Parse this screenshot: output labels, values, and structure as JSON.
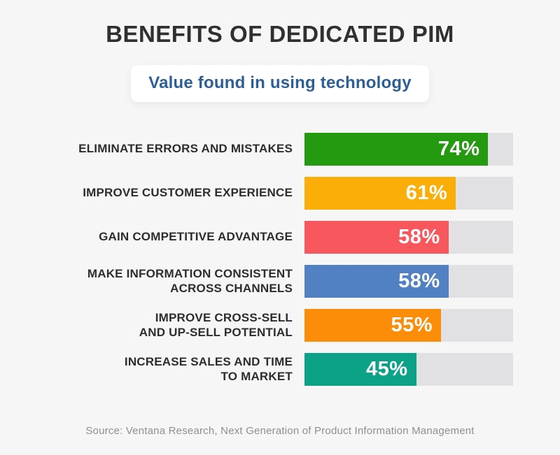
{
  "header": {
    "title": "BENEFITS OF DEDICATED PIM",
    "subtitle": "Value found in using technology"
  },
  "footer": {
    "source": "Source: Ventana Research, Next Generation of Product Information Management"
  },
  "colors": {
    "background": "#f6f6f7",
    "title_text": "#303030",
    "subtitle_text": "#2d5f95",
    "subtitle_pill_bg": "#ffffff",
    "label_text": "#2d2d2d",
    "bar_track": "#e1e1e4",
    "value_text": "#ffffff",
    "source_text": "#8f8f93"
  },
  "chart_data": {
    "type": "bar",
    "orientation": "horizontal",
    "title": "BENEFITS OF DEDICATED PIM",
    "subtitle": "Value found in using technology",
    "source": "Source: Ventana Research, Next Generation of Product Information Management",
    "value_range": [
      0,
      100
    ],
    "grid": false,
    "legend": false,
    "track_color": "#e1e1e4",
    "fill_scale": 1.19,
    "categories": [
      "ELIMINATE ERRORS AND MISTAKES",
      "IMPROVE CUSTOMER EXPERIENCE",
      "GAIN COMPETITIVE ADVANTAGE",
      "MAKE INFORMATION CONSISTENT ACROSS CHANNELS",
      "IMPROVE CROSS-SELL AND UP-SELL POTENTIAL",
      "INCREASE SALES AND TIME TO MARKET"
    ],
    "values": [
      74,
      61,
      58,
      58,
      55,
      45
    ],
    "rows": [
      {
        "label": "ELIMINATE ERRORS AND MISTAKES",
        "label_lines": [
          "ELIMINATE ERRORS AND MISTAKES"
        ],
        "value": 74,
        "value_label": "74%",
        "color": "#239a10"
      },
      {
        "label": "IMPROVE CUSTOMER EXPERIENCE",
        "label_lines": [
          "IMPROVE CUSTOMER EXPERIENCE"
        ],
        "value": 61,
        "value_label": "61%",
        "color": "#fbae07"
      },
      {
        "label": "GAIN COMPETITIVE ADVANTAGE",
        "label_lines": [
          "GAIN COMPETITIVE ADVANTAGE"
        ],
        "value": 58,
        "value_label": "58%",
        "color": "#f9575e"
      },
      {
        "label": "MAKE INFORMATION CONSISTENT ACROSS CHANNELS",
        "label_lines": [
          "MAKE INFORMATION CONSISTENT",
          "ACROSS CHANNELS"
        ],
        "value": 58,
        "value_label": "58%",
        "color": "#5180c3"
      },
      {
        "label": "IMPROVE CROSS-SELL AND UP-SELL POTENTIAL",
        "label_lines": [
          "IMPROVE CROSS-SELL",
          "AND UP-SELL POTENTIAL"
        ],
        "value": 55,
        "value_label": "55%",
        "color": "#fb8d08"
      },
      {
        "label": "INCREASE SALES AND TIME TO MARKET",
        "label_lines": [
          "INCREASE SALES AND TIME",
          "TO MARKET"
        ],
        "value": 45,
        "value_label": "45%",
        "color": "#0ba287"
      }
    ]
  }
}
